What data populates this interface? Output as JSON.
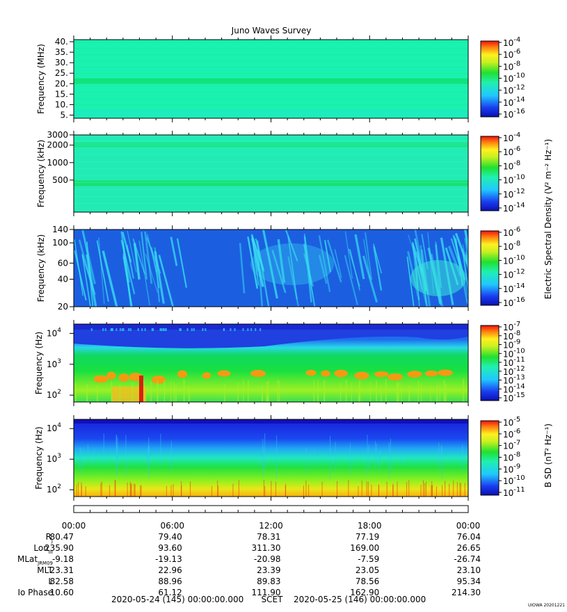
{
  "title": "Juno Waves Survey",
  "chart_data": [
    {
      "type": "heatmap",
      "ylabel": "Frequency (MHz)",
      "yticks": [
        "40.",
        "35.",
        "30.",
        "25.",
        "20.",
        "15.",
        "10.",
        "5."
      ],
      "ylim": [
        3.5,
        41
      ],
      "yscale": "linear",
      "colorbar_ticks": [
        "-4",
        "-6",
        "-8",
        "-10",
        "-12",
        "-14",
        "-16"
      ],
      "colors": {
        "background": "#19f2b0",
        "band": "#12e27a"
      }
    },
    {
      "type": "heatmap",
      "ylabel": "Frequency (kHz)",
      "yticks": [
        "3000",
        "2000",
        "1000",
        "500"
      ],
      "ylim": [
        140,
        3000
      ],
      "yscale": "log",
      "colorbar_label": "Electric Spectral Density (V² m⁻² Hz⁻¹)",
      "colorbar_ticks": [
        "-4",
        "-6",
        "-8",
        "-10",
        "-12",
        "-14"
      ],
      "colors": {
        "background": "#22ecb4",
        "band": "#18e070"
      }
    },
    {
      "type": "heatmap",
      "ylabel": "Frequency (kHz)",
      "yticks": [
        "140",
        "100",
        "60",
        "40",
        "20"
      ],
      "ylim": [
        20,
        140
      ],
      "yscale": "log",
      "colorbar_ticks": [
        "-6",
        "-8",
        "-10",
        "-12",
        "-14",
        "-16"
      ],
      "colors": {
        "background": "#1b5fe0",
        "streak": "#39e2f2"
      }
    },
    {
      "type": "heatmap",
      "ylabel": "Frequency (Hz)",
      "yticks": [
        "4",
        "3",
        "2"
      ],
      "ylim": [
        60,
        20000
      ],
      "yscale": "log",
      "colorbar_ticks": [
        "-7",
        "-8",
        "-9",
        "-10",
        "-11",
        "-12",
        "-13",
        "-14",
        "-15"
      ],
      "colors": {
        "top": "#1c4fe6",
        "mid": "#10dc40",
        "blobs": "#f49a12"
      }
    },
    {
      "type": "heatmap",
      "ylabel": "Frequency (Hz)",
      "yticks": [
        "4",
        "3",
        "2"
      ],
      "ylim": [
        60,
        20000
      ],
      "yscale": "log",
      "colorbar_label": "B SD (nT² Hz⁻¹)",
      "colorbar_ticks": [
        "-5",
        "-6",
        "-7",
        "-8",
        "-9",
        "-10",
        "-11"
      ],
      "colors": {
        "top": "#1a2ae0",
        "bottom": "#f2d418"
      }
    }
  ],
  "ephemeris": {
    "times": [
      "00:00",
      "06:00",
      "12:00",
      "18:00",
      "00:00"
    ],
    "rows": [
      {
        "label": "R",
        "sub": "J",
        "values": [
          "80.47",
          "79.40",
          "78.31",
          "77.19",
          "76.04"
        ]
      },
      {
        "label": "Lon",
        "sub": "III",
        "values": [
          "235.90",
          "93.60",
          "311.30",
          "169.00",
          "26.65"
        ]
      },
      {
        "label": "MLat",
        "sub": "JRM09",
        "values": [
          "-9.18",
          "-19.13",
          "-20.98",
          "-7.59",
          "-26.74"
        ]
      },
      {
        "label": "MLT",
        "sub": "",
        "values": [
          "23.31",
          "22.96",
          "23.39",
          "23.05",
          "23.10"
        ]
      },
      {
        "label": "L",
        "sub": "",
        "values": [
          "82.58",
          "88.96",
          "89.83",
          "78.56",
          "95.34"
        ]
      },
      {
        "label": "Io Phase",
        "sub": "",
        "values": [
          "10.60",
          "61.12",
          "111.90",
          "162.90",
          "214.30"
        ]
      }
    ],
    "start_label": "2020-05-24 (145) 00:00:00.000",
    "scet_label": "SCET",
    "end_label": "2020-05-25 (146) 00:00:00.000"
  },
  "footer_stamp": "UIOWA 20201221"
}
